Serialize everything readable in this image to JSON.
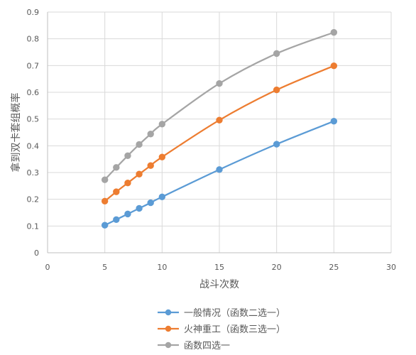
{
  "chart_data": {
    "type": "scatter",
    "title": "",
    "xlabel": "战斗次数",
    "ylabel": "拿到双卡套组概率",
    "xlim": [
      0,
      30
    ],
    "ylim": [
      0,
      0.9
    ],
    "xticks": [
      0,
      5,
      10,
      15,
      20,
      25,
      30
    ],
    "yticks": [
      0,
      0.1,
      0.2,
      0.3,
      0.4,
      0.5,
      0.6,
      0.7,
      0.8,
      0.9
    ],
    "xtick_labels": [
      "0",
      "5",
      "10",
      "15",
      "20",
      "25",
      "30"
    ],
    "ytick_labels": [
      "0",
      "0.1",
      "0.2",
      "0.3",
      "0.4",
      "0.5",
      "0.6",
      "0.7",
      "0.8",
      "0.9"
    ],
    "grid": true,
    "smooth_lines": true,
    "legend_position": "bottom",
    "series": [
      {
        "name": "一般情况（函数二选一）",
        "color": "#5b9bd5",
        "x": [
          5,
          6,
          7,
          8,
          9,
          10,
          15,
          20,
          25
        ],
        "y": [
          0.103,
          0.124,
          0.145,
          0.166,
          0.187,
          0.209,
          0.311,
          0.406,
          0.492
        ]
      },
      {
        "name": "火神重工（函数三选一）",
        "color": "#ed7d31",
        "x": [
          5,
          6,
          7,
          8,
          9,
          10,
          15,
          20,
          25
        ],
        "y": [
          0.193,
          0.228,
          0.261,
          0.294,
          0.326,
          0.358,
          0.496,
          0.609,
          0.699
        ]
      },
      {
        "name": "函数四选一",
        "color": "#a5a5a5",
        "x": [
          5,
          6,
          7,
          8,
          9,
          10,
          15,
          20,
          25
        ],
        "y": [
          0.273,
          0.319,
          0.363,
          0.405,
          0.444,
          0.481,
          0.633,
          0.745,
          0.824
        ]
      }
    ]
  }
}
